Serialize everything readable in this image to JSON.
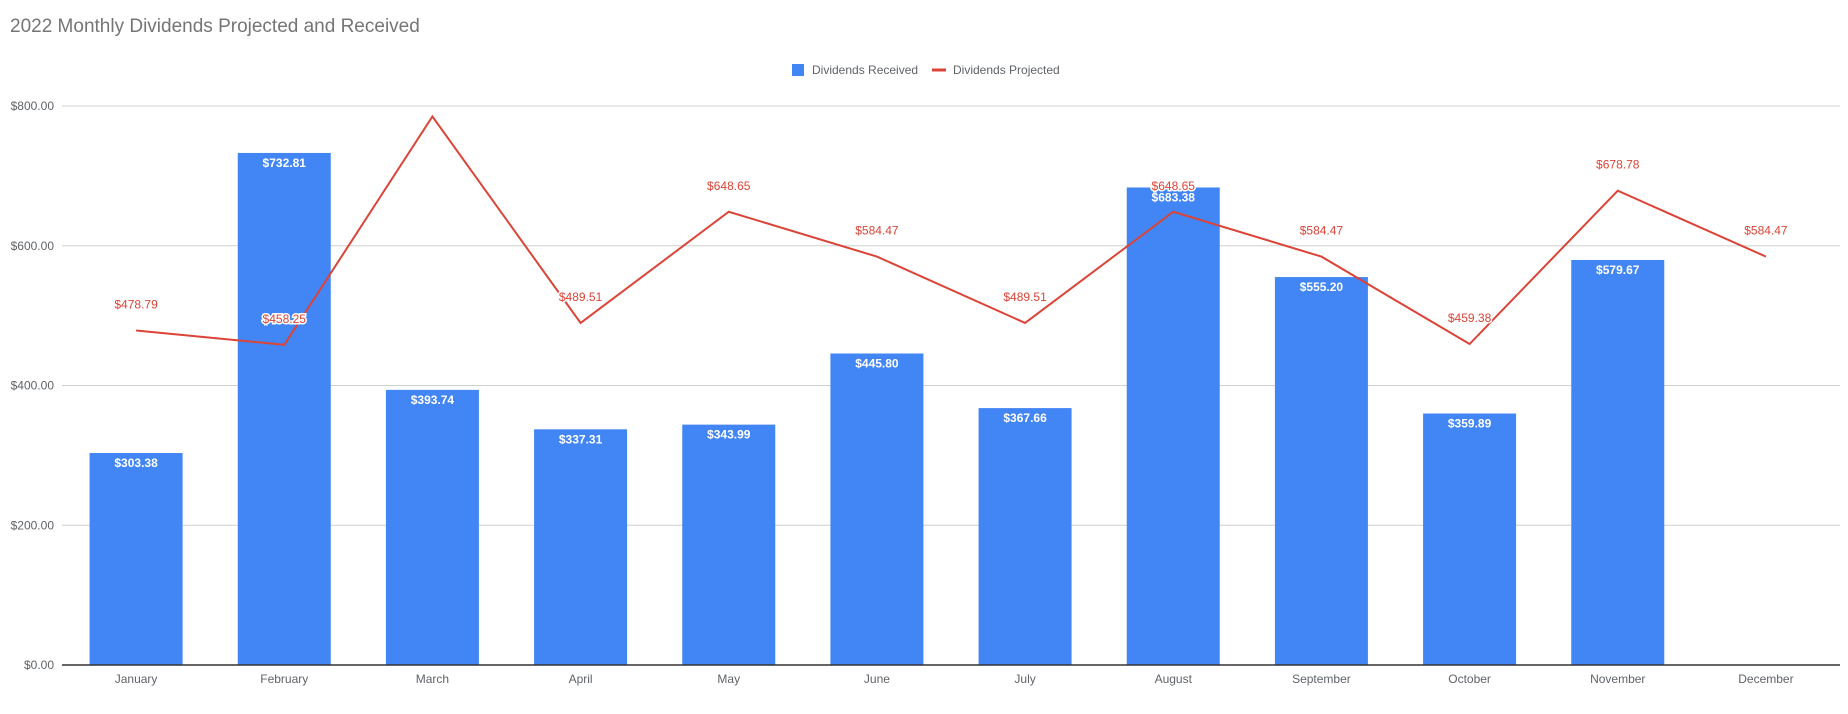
{
  "chart_data": {
    "type": "bar",
    "title": "2022 Monthly Dividends Projected and Received",
    "xlabel": "",
    "ylabel": "",
    "ylim": [
      0,
      800
    ],
    "yticks": [
      "$0.00",
      "$200.00",
      "$400.00",
      "$600.00",
      "$800.00"
    ],
    "ytick_values": [
      0,
      200,
      400,
      600,
      800
    ],
    "grid": true,
    "legend_position": "top-center",
    "categories": [
      "January",
      "February",
      "March",
      "April",
      "May",
      "June",
      "July",
      "August",
      "September",
      "October",
      "November",
      "December"
    ],
    "series": [
      {
        "name": "Dividends Received",
        "type": "bar",
        "color": "#4285f4",
        "values": [
          303.38,
          732.81,
          393.74,
          337.31,
          343.99,
          445.8,
          367.66,
          683.38,
          555.2,
          359.89,
          579.67,
          null
        ],
        "labels": [
          "$303.38",
          "$732.81",
          "$393.74",
          "$337.31",
          "$343.99",
          "$445.80",
          "$367.66",
          "$683.38",
          "$555.20",
          "$359.89",
          "$579.67",
          ""
        ]
      },
      {
        "name": "Dividends Projected",
        "type": "line",
        "color": "#db4437",
        "values": [
          478.79,
          458.25,
          785.0,
          489.51,
          648.65,
          584.47,
          489.51,
          648.65,
          584.47,
          459.38,
          678.78,
          584.47
        ],
        "labels": [
          "$478.79",
          "$458.25",
          "",
          "$489.51",
          "$648.65",
          "$584.47",
          "$489.51",
          "$648.65",
          "$584.47",
          "$459.38",
          "$678.78",
          "$584.47"
        ]
      }
    ]
  }
}
